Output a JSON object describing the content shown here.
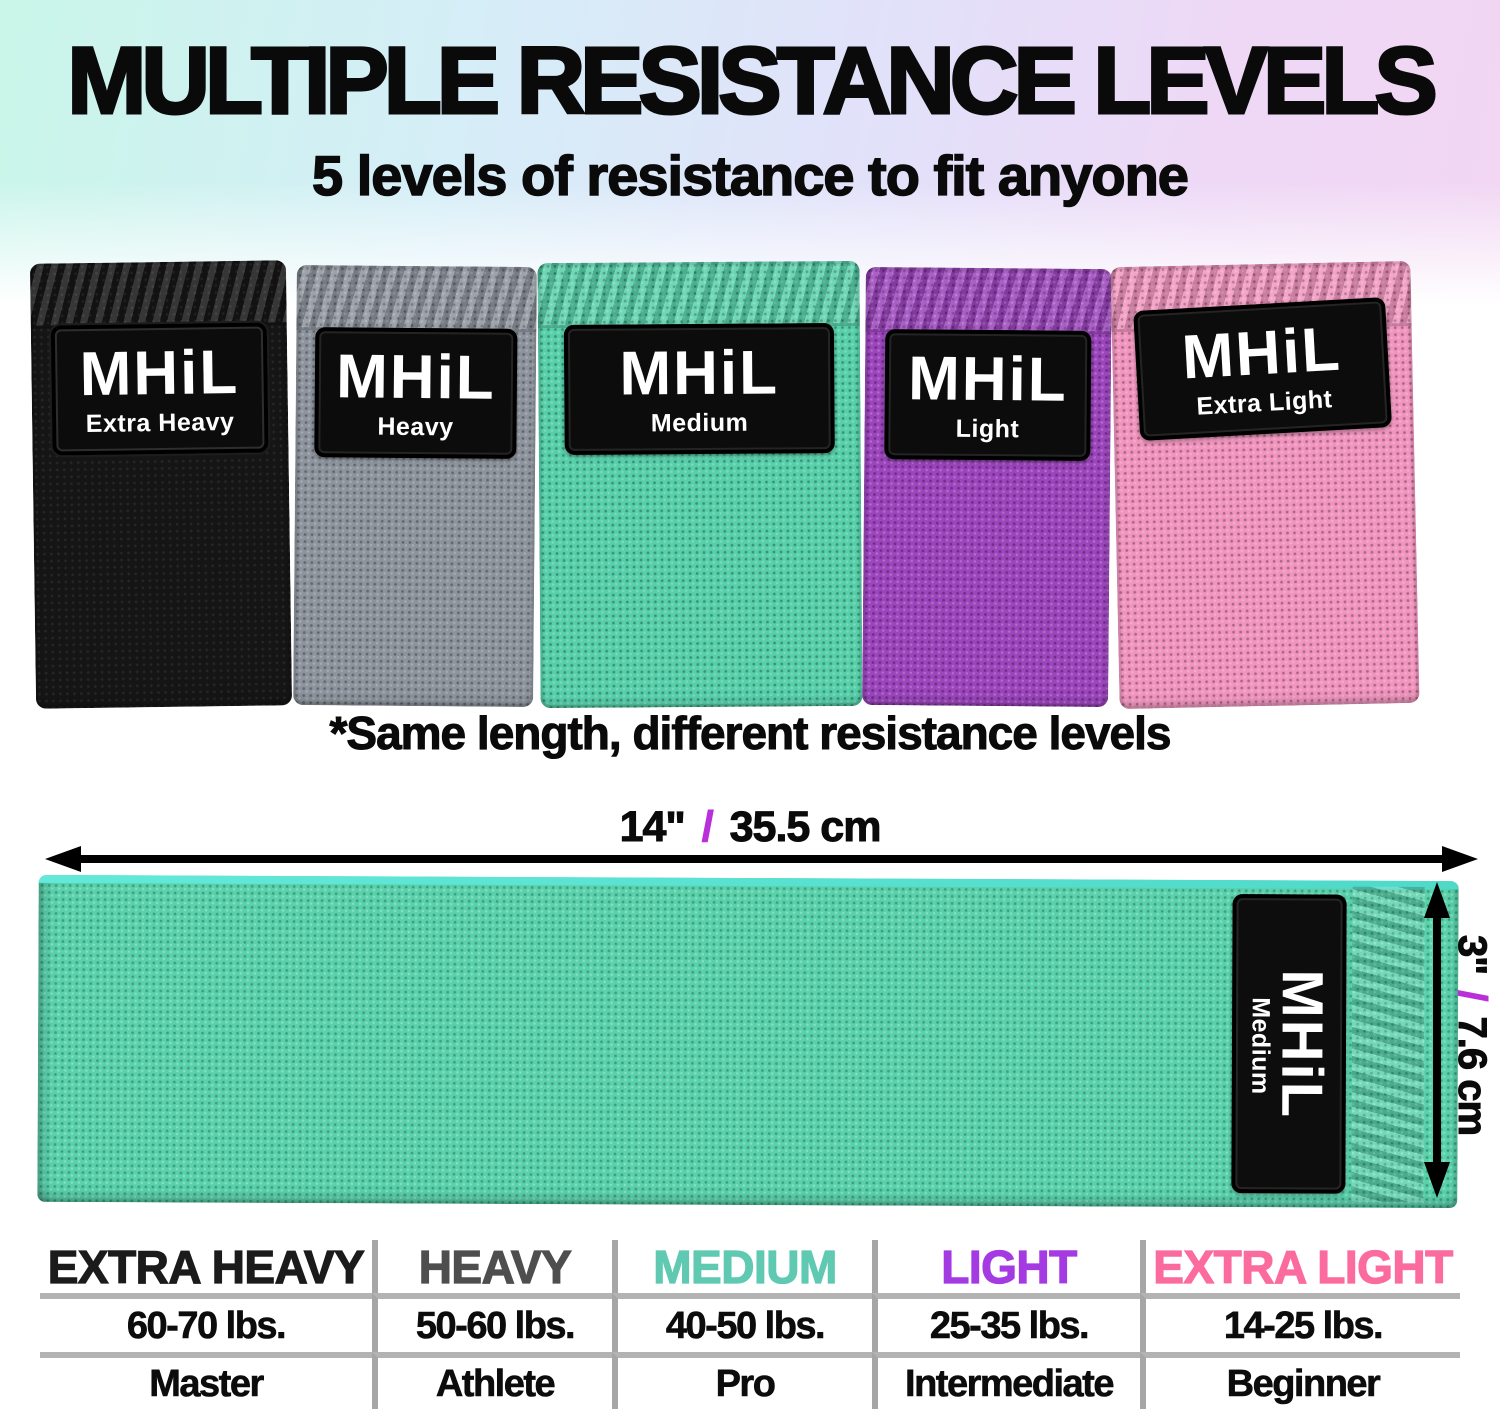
{
  "header": {
    "title": "MULTIPLE RESISTANCE LEVELS",
    "subtitle": "5 levels of resistance to fit anyone",
    "gradient_left": "#c9f6e9",
    "gradient_mid": "#dcecf9",
    "gradient_right": "#f2d6f3"
  },
  "note": "*Same length, different resistance levels",
  "bands": [
    {
      "brand": "MHiL",
      "level": "Extra Heavy",
      "color": "#151515"
    },
    {
      "brand": "MHiL",
      "level": "Heavy",
      "color": "#8e949d"
    },
    {
      "brand": "MHiL",
      "level": "Medium",
      "color": "#57d0aa"
    },
    {
      "brand": "MHiL",
      "level": "Light",
      "color": "#9c45bd"
    },
    {
      "brand": "MHiL",
      "level": "Extra Light",
      "color": "#f195be"
    }
  ],
  "dimensions": {
    "length_in": "14\"",
    "length_cm": "35.5 cm",
    "width_in": "3\"",
    "width_cm": "7.6 cm",
    "separator": "/",
    "slash_color": "#b92fd9",
    "arrow_color": "#000000"
  },
  "big_band": {
    "brand": "MHiL",
    "level": "Medium",
    "color": "#5ad1ab",
    "top_edge_color": "#57e2d2"
  },
  "table": {
    "columns": [
      {
        "name": "EXTRA HEAVY",
        "color": "#1b1b1b",
        "weight": "60-70 lbs.",
        "level": "Master"
      },
      {
        "name": "HEAVY",
        "color": "#4e4e4e",
        "weight": "50-60 lbs.",
        "level": "Athlete"
      },
      {
        "name": "MEDIUM",
        "color": "#5fc9b2",
        "weight": "40-50 lbs.",
        "level": "Pro"
      },
      {
        "name": "LIGHT",
        "color": "#a43ae1",
        "weight": "25-35 lbs.",
        "level": "Intermediate"
      },
      {
        "name": "EXTRA LIGHT",
        "color": "#fb6b9e",
        "weight": "14-25 lbs.",
        "level": "Beginner"
      }
    ],
    "divider_color": "#a6a6a6"
  }
}
